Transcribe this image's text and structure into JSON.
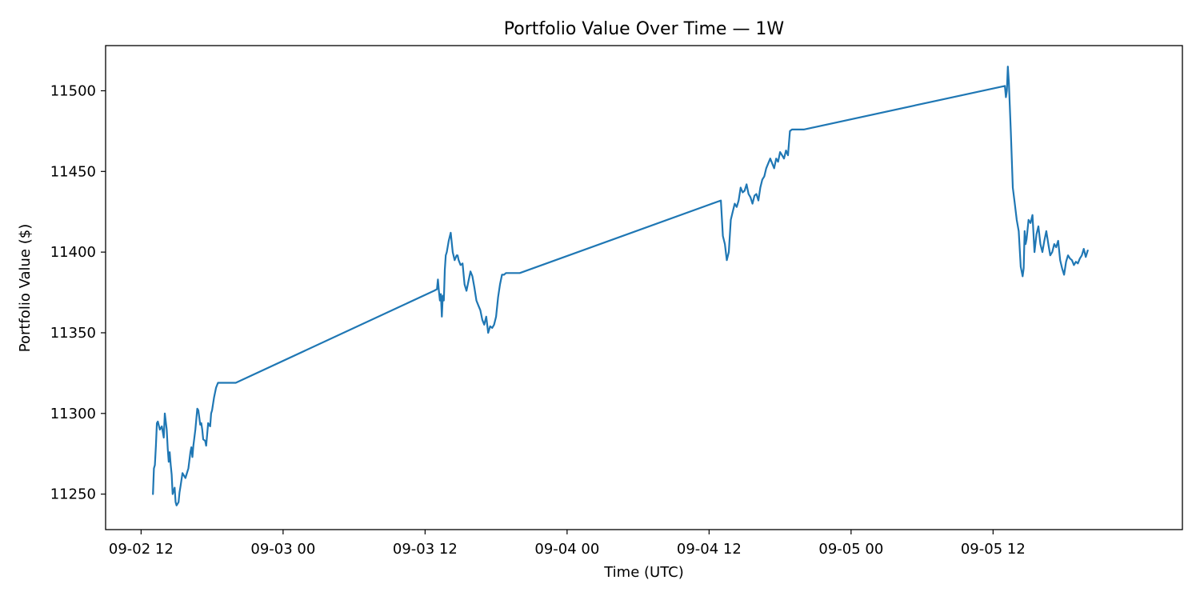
{
  "chart_data": {
    "type": "line",
    "title": "Portfolio Value Over Time — 1W",
    "xlabel": "Time (UTC)",
    "ylabel": "Portfolio Value ($)",
    "xlim": [
      "2025-09-02 09:00",
      "2025-09-06 04:00"
    ],
    "ylim": [
      11228,
      11528
    ],
    "grid": false,
    "x_ticks": [
      {
        "value": "2025-09-02 12:00",
        "label": "09-02 12"
      },
      {
        "value": "2025-09-03 00:00",
        "label": "09-03 00"
      },
      {
        "value": "2025-09-03 12:00",
        "label": "09-03 12"
      },
      {
        "value": "2025-09-04 00:00",
        "label": "09-04 00"
      },
      {
        "value": "2025-09-04 12:00",
        "label": "09-04 12"
      },
      {
        "value": "2025-09-05 00:00",
        "label": "09-05 00"
      },
      {
        "value": "2025-09-05 12:00",
        "label": "09-05 12"
      }
    ],
    "y_ticks": [
      {
        "value": 11250,
        "label": "11250"
      },
      {
        "value": 11300,
        "label": "11300"
      },
      {
        "value": 11350,
        "label": "11350"
      },
      {
        "value": 11400,
        "label": "11400"
      },
      {
        "value": 11450,
        "label": "11450"
      },
      {
        "value": 11500,
        "label": "11500"
      }
    ],
    "series": [
      {
        "color": "#1f77b4",
        "x": [
          "2025-09-02 13:00",
          "2025-09-02 13:05",
          "2025-09-02 13:10",
          "2025-09-02 13:15",
          "2025-09-02 13:20",
          "2025-09-02 13:25",
          "2025-09-02 13:35",
          "2025-09-02 13:45",
          "2025-09-02 13:55",
          "2025-09-02 14:00",
          "2025-09-02 14:10",
          "2025-09-02 14:15",
          "2025-09-02 14:20",
          "2025-09-02 14:25",
          "2025-09-02 14:30",
          "2025-09-02 14:35",
          "2025-09-02 14:40",
          "2025-09-02 14:50",
          "2025-09-02 14:55",
          "2025-09-02 15:00",
          "2025-09-02 15:10",
          "2025-09-02 15:15",
          "2025-09-02 15:20",
          "2025-09-02 15:30",
          "2025-09-02 15:45",
          "2025-09-02 16:00",
          "2025-09-02 16:10",
          "2025-09-02 16:15",
          "2025-09-02 16:20",
          "2025-09-02 16:25",
          "2025-09-02 16:35",
          "2025-09-02 16:45",
          "2025-09-02 16:50",
          "2025-09-02 17:00",
          "2025-09-02 17:05",
          "2025-09-02 17:10",
          "2025-09-02 17:15",
          "2025-09-02 17:25",
          "2025-09-02 17:30",
          "2025-09-02 17:40",
          "2025-09-02 17:50",
          "2025-09-02 17:55",
          "2025-09-02 18:00",
          "2025-09-02 18:10",
          "2025-09-02 18:20",
          "2025-09-02 18:30",
          "2025-09-02 18:40",
          "2025-09-02 18:50",
          "2025-09-02 19:00",
          "2025-09-02 19:10",
          "2025-09-02 19:20",
          "2025-09-02 19:30",
          "2025-09-02 19:40",
          "2025-09-02 19:50",
          "2025-09-02 20:00",
          "2025-09-03 12:45",
          "2025-09-03 13:00",
          "2025-09-03 13:05",
          "2025-09-03 13:10",
          "2025-09-03 13:15",
          "2025-09-03 13:20",
          "2025-09-03 13:25",
          "2025-09-03 13:30",
          "2025-09-03 13:35",
          "2025-09-03 13:40",
          "2025-09-03 13:45",
          "2025-09-03 13:50",
          "2025-09-03 14:00",
          "2025-09-03 14:10",
          "2025-09-03 14:20",
          "2025-09-03 14:30",
          "2025-09-03 14:40",
          "2025-09-03 14:45",
          "2025-09-03 14:50",
          "2025-09-03 15:00",
          "2025-09-03 15:10",
          "2025-09-03 15:20",
          "2025-09-03 15:30",
          "2025-09-03 15:40",
          "2025-09-03 15:50",
          "2025-09-03 16:00",
          "2025-09-03 16:10",
          "2025-09-03 16:20",
          "2025-09-03 16:30",
          "2025-09-03 16:40",
          "2025-09-03 16:50",
          "2025-09-03 17:00",
          "2025-09-03 17:10",
          "2025-09-03 17:20",
          "2025-09-03 17:30",
          "2025-09-03 17:40",
          "2025-09-03 17:50",
          "2025-09-03 18:00",
          "2025-09-03 18:10",
          "2025-09-03 18:20",
          "2025-09-03 18:30",
          "2025-09-03 18:40",
          "2025-09-03 18:50",
          "2025-09-03 19:00",
          "2025-09-03 19:10",
          "2025-09-03 19:20",
          "2025-09-03 19:30",
          "2025-09-03 19:40",
          "2025-09-03 19:50",
          "2025-09-03 20:00",
          "2025-09-04 13:00",
          "2025-09-04 13:10",
          "2025-09-04 13:20",
          "2025-09-04 13:30",
          "2025-09-04 13:40",
          "2025-09-04 13:50",
          "2025-09-04 14:00",
          "2025-09-04 14:10",
          "2025-09-04 14:20",
          "2025-09-04 14:30",
          "2025-09-04 14:40",
          "2025-09-04 14:50",
          "2025-09-04 15:00",
          "2025-09-04 15:10",
          "2025-09-04 15:20",
          "2025-09-04 15:30",
          "2025-09-04 15:40",
          "2025-09-04 15:50",
          "2025-09-04 16:00",
          "2025-09-04 16:10",
          "2025-09-04 16:20",
          "2025-09-04 16:30",
          "2025-09-04 16:40",
          "2025-09-04 16:50",
          "2025-09-04 17:00",
          "2025-09-04 17:10",
          "2025-09-04 17:20",
          "2025-09-04 17:30",
          "2025-09-04 17:40",
          "2025-09-04 17:50",
          "2025-09-04 18:00",
          "2025-09-04 18:10",
          "2025-09-04 18:20",
          "2025-09-04 18:30",
          "2025-09-04 18:40",
          "2025-09-04 18:50",
          "2025-09-04 19:00",
          "2025-09-04 19:10",
          "2025-09-04 19:20",
          "2025-09-04 19:30",
          "2025-09-04 19:40",
          "2025-09-04 19:50",
          "2025-09-04 20:00",
          "2025-09-05 13:00",
          "2025-09-05 13:05",
          "2025-09-05 13:10",
          "2025-09-05 13:15",
          "2025-09-05 13:20",
          "2025-09-05 13:30",
          "2025-09-05 13:40",
          "2025-09-05 13:50",
          "2025-09-05 14:00",
          "2025-09-05 14:10",
          "2025-09-05 14:20",
          "2025-09-05 14:30",
          "2025-09-05 14:35",
          "2025-09-05 14:40",
          "2025-09-05 14:45",
          "2025-09-05 14:50",
          "2025-09-05 15:00",
          "2025-09-05 15:10",
          "2025-09-05 15:20",
          "2025-09-05 15:30",
          "2025-09-05 15:40",
          "2025-09-05 15:50",
          "2025-09-05 16:00",
          "2025-09-05 16:10",
          "2025-09-05 16:20",
          "2025-09-05 16:30",
          "2025-09-05 16:40",
          "2025-09-05 16:50",
          "2025-09-05 17:00",
          "2025-09-05 17:10",
          "2025-09-05 17:20",
          "2025-09-05 17:30",
          "2025-09-05 17:40",
          "2025-09-05 17:50",
          "2025-09-05 18:00",
          "2025-09-05 18:10",
          "2025-09-05 18:20",
          "2025-09-05 18:30",
          "2025-09-05 18:40",
          "2025-09-05 18:50",
          "2025-09-05 19:00",
          "2025-09-05 19:10",
          "2025-09-05 19:20",
          "2025-09-05 19:30",
          "2025-09-05 19:40",
          "2025-09-05 19:50",
          "2025-09-05 20:00"
        ],
        "y": [
          11250,
          11266,
          11268,
          11280,
          11294,
          11295,
          11290,
          11292,
          11285,
          11300,
          11290,
          11278,
          11270,
          11276,
          11268,
          11262,
          11250,
          11254,
          11245,
          11243,
          11245,
          11251,
          11255,
          11263,
          11260,
          11266,
          11276,
          11279,
          11273,
          11280,
          11290,
          11303,
          11302,
          11293,
          11294,
          11290,
          11284,
          11283,
          11280,
          11294,
          11292,
          11300,
          11302,
          11310,
          11316,
          11319,
          11319,
          11319,
          11319,
          11319,
          11319,
          11319,
          11319,
          11319,
          11319,
          11376,
          11377,
          11383,
          11376,
          11370,
          11374,
          11360,
          11373,
          11370,
          11389,
          11398,
          11400,
          11407,
          11412,
          11400,
          11395,
          11398,
          11398,
          11395,
          11392,
          11393,
          11380,
          11376,
          11382,
          11388,
          11385,
          11378,
          11370,
          11367,
          11364,
          11358,
          11355,
          11360,
          11350,
          11354,
          11353,
          11355,
          11360,
          11372,
          11380,
          11386,
          11386,
          11387,
          11387,
          11387,
          11387,
          11387,
          11387,
          11387,
          11387,
          11432,
          11410,
          11405,
          11395,
          11400,
          11420,
          11425,
          11430,
          11428,
          11432,
          11440,
          11437,
          11438,
          11442,
          11436,
          11434,
          11430,
          11435,
          11436,
          11432,
          11440,
          11445,
          11447,
          11452,
          11455,
          11458,
          11455,
          11452,
          11458,
          11456,
          11462,
          11460,
          11458,
          11463,
          11460,
          11475,
          11476,
          11476,
          11476,
          11476,
          11476,
          11476,
          11476,
          11503,
          11496,
          11500,
          11515,
          11505,
          11475,
          11440,
          11430,
          11420,
          11413,
          11391,
          11385,
          11390,
          11413,
          11405,
          11408,
          11420,
          11418,
          11423,
          11400,
          11411,
          11416,
          11405,
          11400,
          11407,
          11413,
          11405,
          11398,
          11400,
          11405,
          11403,
          11407,
          11395,
          11390,
          11386,
          11394,
          11398,
          11396,
          11395,
          11392,
          11394,
          11393,
          11396,
          11398,
          11402,
          11397,
          11401
        ]
      }
    ]
  }
}
